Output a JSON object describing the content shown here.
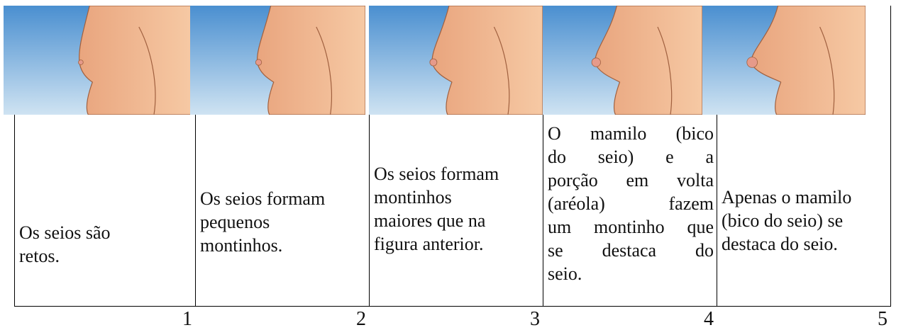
{
  "table": {
    "cells": [
      {
        "lines": [
          "Os seios são",
          "retos."
        ],
        "number": "1"
      },
      {
        "lines": [
          "Os seios formam",
          "pequenos",
          "montinhos."
        ],
        "number": "2"
      },
      {
        "lines": [
          "Os seios formam",
          "montinhos",
          "maiores que na",
          "figura anterior."
        ],
        "number": "3"
      },
      {
        "lines": [
          "O mamilo (bico",
          "do seio) e a",
          "porção em volta",
          "(aréola) fazem",
          "um montinho que",
          "se destaca do",
          "seio."
        ],
        "number": "4"
      },
      {
        "lines": [
          "Apenas o mamilo",
          "(bico do seio) se",
          "destaca do seio."
        ],
        "number": "5"
      }
    ]
  }
}
